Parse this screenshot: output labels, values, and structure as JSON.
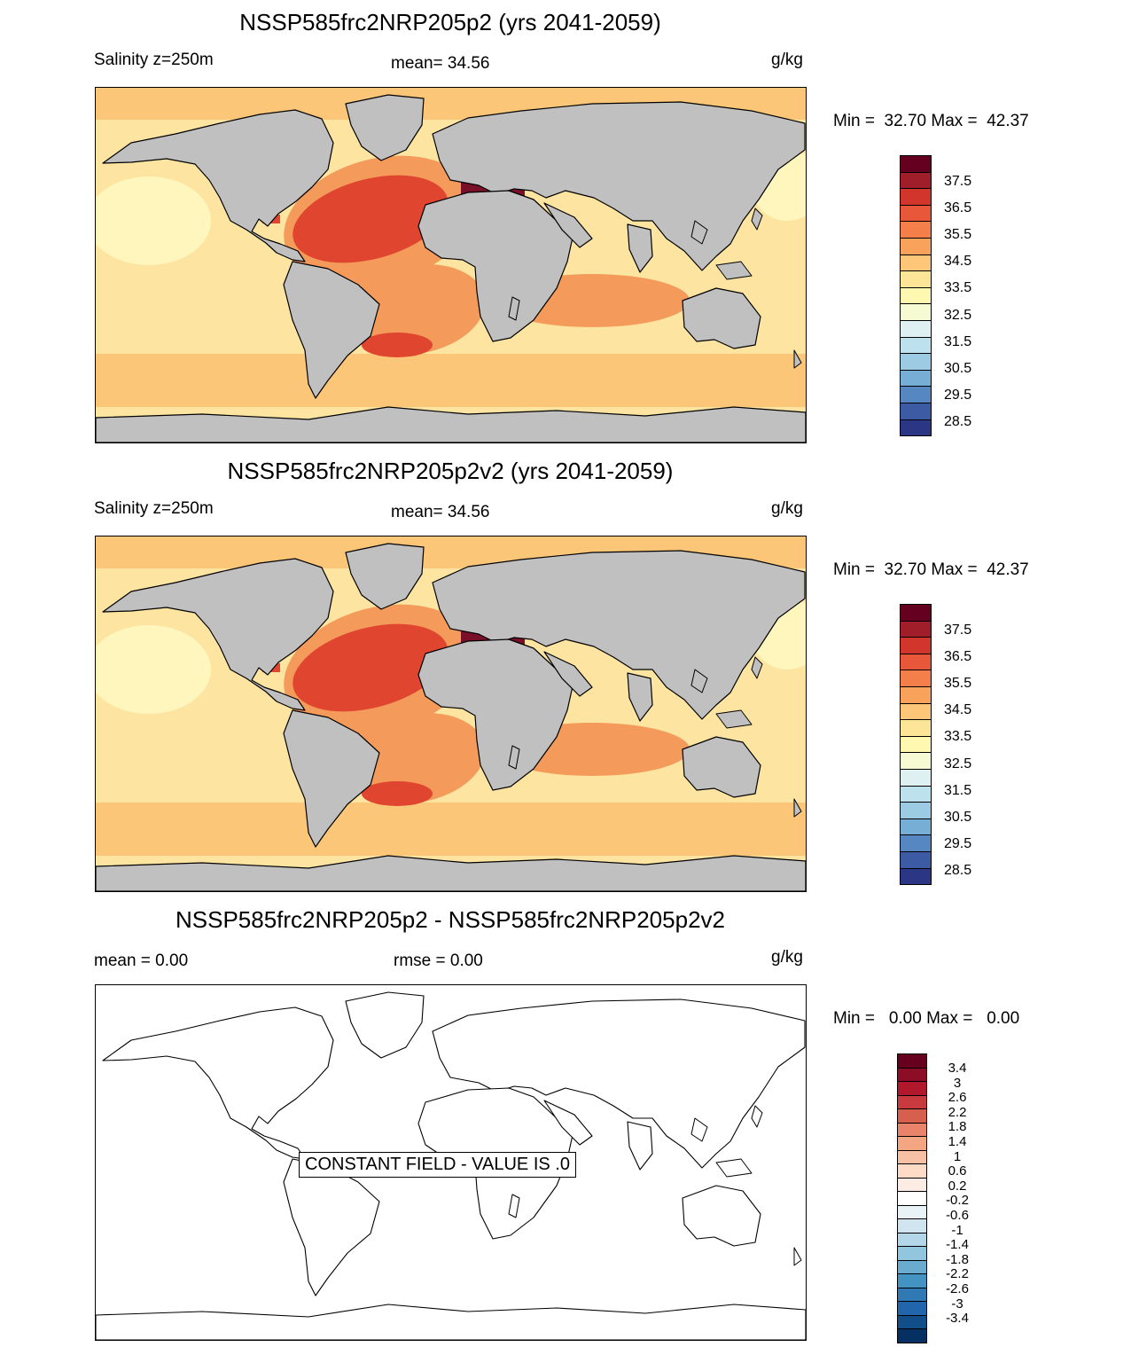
{
  "panels": [
    {
      "title": "NSSP585frc2NRP205p2 (yrs 2041-2059)",
      "left_label": "Salinity z=250m",
      "center_label": "mean=  34.56",
      "units": "g/kg",
      "minmax": "Min =  32.70 Max =  42.37"
    },
    {
      "title": "NSSP585frc2NRP205p2v2 (yrs 2041-2059)",
      "left_label": "Salinity z=250m",
      "center_label": "mean=  34.56",
      "units": "g/kg",
      "minmax": "Min =  32.70 Max =  42.37"
    },
    {
      "title": "NSSP585frc2NRP205p2 - NSSP585frc2NRP205p2v2",
      "left_label": "mean =   0.00",
      "center_label": "rmse =   0.00",
      "units": "g/kg",
      "minmax": "Min =   0.00 Max =   0.00",
      "note": "CONSTANT FIELD - VALUE IS .0"
    }
  ],
  "salinity_colorbar": {
    "colors": [
      "#650021",
      "#a01d2a",
      "#d2352b",
      "#e9573b",
      "#f47f4b",
      "#f9a25b",
      "#fdc678",
      "#fde597",
      "#fff8b0",
      "#f6fbd3",
      "#dff0f3",
      "#bde2ee",
      "#9ccbe3",
      "#77aed6",
      "#5787c0",
      "#3d5aa4",
      "#2b3784"
    ],
    "labels": [
      "37.5",
      "36.5",
      "35.5",
      "34.5",
      "33.5",
      "32.5",
      "31.5",
      "30.5",
      "29.5",
      "28.5"
    ]
  },
  "diff_colorbar": {
    "colors": [
      "#67001f",
      "#8c0d25",
      "#b2182b",
      "#c83a3e",
      "#d6604d",
      "#e9836a",
      "#f4a582",
      "#f8c1a6",
      "#fddbc7",
      "#fdece3",
      "#ffffff",
      "#e8f2f7",
      "#d1e5f0",
      "#b3d6e8",
      "#92c5de",
      "#6aaccf",
      "#4393c3",
      "#3179b5",
      "#2166ac",
      "#124e89",
      "#053061"
    ],
    "labels": [
      "3.4",
      "3",
      "2.6",
      "2.2",
      "1.8",
      "1.4",
      "1",
      "0.6",
      "0.2",
      "-0.2",
      "-0.6",
      "-1",
      "-1.4",
      "-1.8",
      "-2.2",
      "-2.6",
      "-3",
      "-3.4"
    ]
  },
  "map_colors": {
    "land": "#c0c0c0",
    "ocean_base": "#fde4a0",
    "ocean_warm": "#fbc678",
    "ocean_hot": "#f49a5a",
    "atlantic": "#e0462f",
    "med": "#7a0f2a",
    "pale": "#fff6bd",
    "coast": "#000000"
  }
}
